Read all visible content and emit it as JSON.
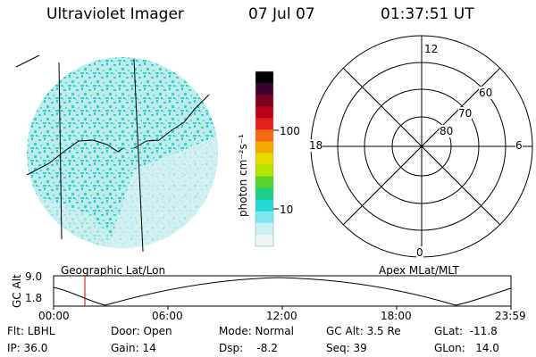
{
  "header": {
    "title": "Ultraviolet Imager",
    "date": "07 Jul 07",
    "time": "01:37:51 UT"
  },
  "colorbar": {
    "unit_label": "photon cm⁻²s⁻¹",
    "ticks": [
      "100",
      "10"
    ],
    "scale": "log",
    "colors": [
      "#000000",
      "#3c0030",
      "#7a0020",
      "#b80018",
      "#e0201a",
      "#f26a10",
      "#f7a800",
      "#e7dc00",
      "#b4e600",
      "#5bd22a",
      "#1ecf8c",
      "#22d8d2",
      "#7de6ee",
      "#c9f2f6",
      "#eef4f6"
    ]
  },
  "polar": {
    "mlt_labels": {
      "top": "12",
      "left": "18",
      "right": "6",
      "bottom": "0"
    },
    "lat_labels": [
      "60",
      "70",
      "80"
    ]
  },
  "timeline": {
    "left_label": "Geographic Lat/Lon",
    "right_label": "Apex MLat/MLT",
    "axis_title": "GC Alt",
    "y_ticks": [
      "9.0",
      "1.8"
    ],
    "x_ticks": [
      "00:00",
      "06:00",
      "12:00",
      "18:00",
      "23:59"
    ],
    "marker_time": "01:37:51"
  },
  "info": {
    "flt": "Flt: LBHL",
    "ip": "IP: 36.0",
    "door": "Door: Open",
    "gain": "Gain: 14",
    "mode": "Mode: Normal",
    "dsp": "Dsp:    -8.2",
    "gc_alt": "GC Alt: 3.5 Re",
    "seq": "Seq: 39",
    "glat": "GLat:  -11.8",
    "glon": "GLon:   14.0"
  },
  "colors": {
    "marker": "#d00000",
    "image_base": "#bfeaf0",
    "image_speckle": "#35d6a8"
  }
}
